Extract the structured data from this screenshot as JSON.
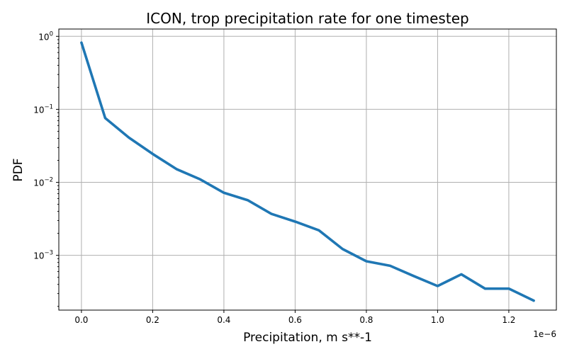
{
  "chart_data": {
    "type": "line",
    "title": "ICON, trop precipitation rate for one timestep",
    "xlabel": "Precipitation, m s**-1",
    "ylabel": "PDF",
    "x_offset_label": "1e−6",
    "yscale": "log",
    "xlim": [
      -0.0635,
      1.3335
    ],
    "ylim_log10": [
      -3.75,
      0.1
    ],
    "xticks": [
      0.0,
      0.2,
      0.4,
      0.6,
      0.8,
      1.0,
      1.2
    ],
    "xtick_labels": [
      "0.0",
      "0.2",
      "0.4",
      "0.6",
      "0.8",
      "1.0",
      "1.2"
    ],
    "yticks": [
      {
        "base": "10",
        "exp": "0"
      },
      {
        "base": "10",
        "exp": "−1"
      },
      {
        "base": "10",
        "exp": "−2"
      },
      {
        "base": "10",
        "exp": "−3"
      }
    ],
    "ytick_values": [
      1,
      0.1,
      0.01,
      0.001
    ],
    "grid": true,
    "color": "#1f77b4",
    "series": [
      {
        "name": "PDF",
        "x": [
          0.0,
          0.0667,
          0.1333,
          0.2,
          0.2667,
          0.3333,
          0.4,
          0.4667,
          0.5333,
          0.6,
          0.6667,
          0.7333,
          0.8,
          0.8667,
          0.9333,
          1.0,
          1.0667,
          1.1333,
          1.2,
          1.27
        ],
        "y": [
          0.82,
          0.076,
          0.041,
          0.0245,
          0.0152,
          0.011,
          0.0072,
          0.0057,
          0.0037,
          0.0029,
          0.0022,
          0.00122,
          0.00083,
          0.00072,
          0.00052,
          0.00038,
          0.00055,
          0.00035,
          0.00035,
          0.00024
        ]
      }
    ]
  }
}
